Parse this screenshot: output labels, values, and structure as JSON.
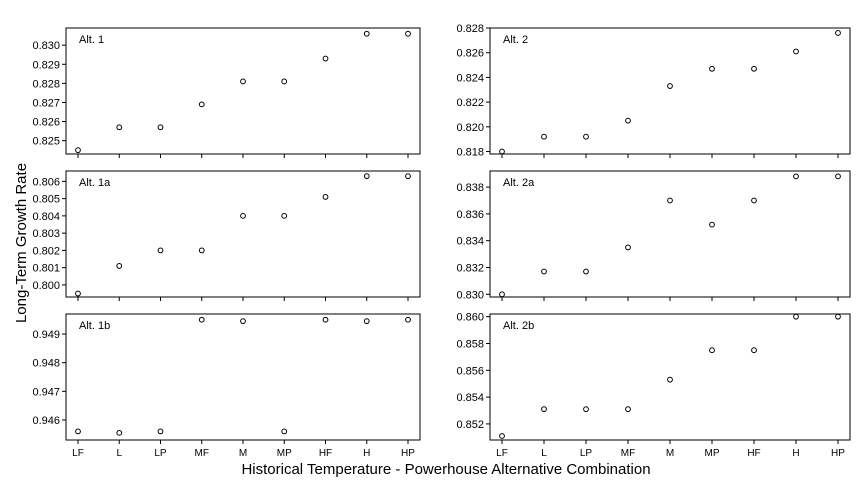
{
  "figure": {
    "ylabel": "Long-Term Growth Rate",
    "xlabel": "Historical Temperature - Powerhouse Alternative Combination"
  },
  "chart_data": [
    {
      "type": "scatter",
      "panel": "Alt. 1",
      "categories": [
        "LF",
        "L",
        "LP",
        "MF",
        "M",
        "MP",
        "HF",
        "H",
        "HP"
      ],
      "values": [
        0.8245,
        0.8257,
        0.8257,
        0.8269,
        0.8281,
        0.8281,
        0.8293,
        0.8306,
        0.8306
      ],
      "yticks": [
        "0.825",
        "0.826",
        "0.827",
        "0.828",
        "0.829",
        "0.830"
      ],
      "ylim": [
        0.8243,
        0.8309
      ],
      "grid": false
    },
    {
      "type": "scatter",
      "panel": "Alt. 2",
      "categories": [
        "LF",
        "L",
        "LP",
        "MF",
        "M",
        "MP",
        "HF",
        "H",
        "HP"
      ],
      "values": [
        0.818,
        0.8192,
        0.8192,
        0.8205,
        0.8233,
        0.8247,
        0.8247,
        0.8261,
        0.8276
      ],
      "yticks": [
        "0.818",
        "0.820",
        "0.822",
        "0.824",
        "0.826",
        "0.828"
      ],
      "ylim": [
        0.8178,
        0.828
      ],
      "grid": false
    },
    {
      "type": "scatter",
      "panel": "Alt. 1a",
      "categories": [
        "LF",
        "L",
        "LP",
        "MF",
        "M",
        "MP",
        "HF",
        "H",
        "HP"
      ],
      "values": [
        0.7995,
        0.8011,
        0.802,
        0.802,
        0.804,
        0.804,
        0.8051,
        0.8063,
        0.8063
      ],
      "yticks": [
        "0.800",
        "0.801",
        "0.802",
        "0.803",
        "0.804",
        "0.805",
        "0.806"
      ],
      "ylim": [
        0.7993,
        0.8066
      ],
      "grid": false
    },
    {
      "type": "scatter",
      "panel": "Alt. 2a",
      "categories": [
        "LF",
        "L",
        "LP",
        "MF",
        "M",
        "MP",
        "HF",
        "H",
        "HP"
      ],
      "values": [
        0.83,
        0.8317,
        0.8317,
        0.8335,
        0.837,
        0.8352,
        0.837,
        0.8388,
        0.8388
      ],
      "yticks": [
        "0.830",
        "0.832",
        "0.834",
        "0.836",
        "0.838"
      ],
      "ylim": [
        0.8298,
        0.8392
      ],
      "grid": false
    },
    {
      "type": "scatter",
      "panel": "Alt. 1b",
      "categories": [
        "LF",
        "L",
        "LP",
        "MF",
        "M",
        "MP",
        "HF",
        "H",
        "HP"
      ],
      "values": [
        0.9456,
        0.94555,
        0.9456,
        0.9495,
        0.94945,
        0.9456,
        0.9495,
        0.94945,
        0.9495
      ],
      "yticks": [
        "0.946",
        "0.947",
        "0.948",
        "0.949"
      ],
      "ylim": [
        0.9453,
        0.9497
      ],
      "grid": false
    },
    {
      "type": "scatter",
      "panel": "Alt. 2b",
      "categories": [
        "LF",
        "L",
        "LP",
        "MF",
        "M",
        "MP",
        "HF",
        "H",
        "HP"
      ],
      "values": [
        0.8511,
        0.8531,
        0.8531,
        0.8531,
        0.8553,
        0.8575,
        0.8575,
        0.86,
        0.86
      ],
      "yticks": [
        "0.852",
        "0.854",
        "0.856",
        "0.858",
        "0.860"
      ],
      "ylim": [
        0.8508,
        0.8602
      ],
      "grid": false
    }
  ]
}
